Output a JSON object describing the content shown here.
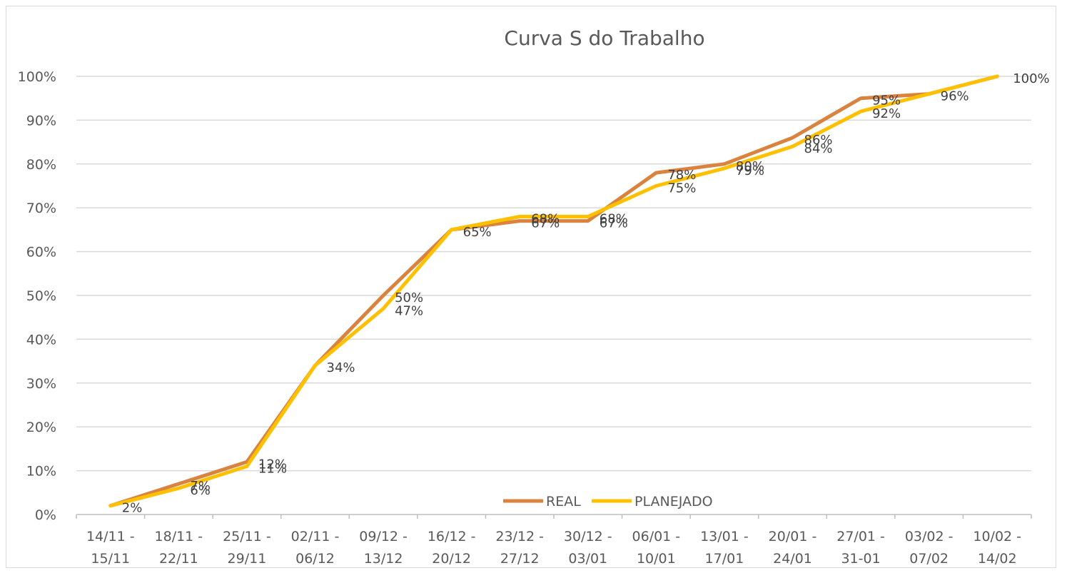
{
  "chart_data": {
    "type": "line",
    "title": "Curva S do Trabalho",
    "xlabel": "",
    "ylabel": "",
    "categories": [
      [
        "14/11 -",
        "15/11"
      ],
      [
        "18/11 -",
        "22/11"
      ],
      [
        "25/11 -",
        "29/11"
      ],
      [
        "02/11 -",
        "06/12"
      ],
      [
        "09/12 -",
        "13/12"
      ],
      [
        "16/12 -",
        "20/12"
      ],
      [
        "23/12 -",
        "27/12"
      ],
      [
        "30/12 -",
        "03/01"
      ],
      [
        "06/01 -",
        "10/01"
      ],
      [
        "13/01 -",
        "17/01"
      ],
      [
        "20/01 -",
        "24/01"
      ],
      [
        "27/01 -",
        "31-01"
      ],
      [
        "03/02 -",
        "07/02"
      ],
      [
        "10/02 -",
        "14/02"
      ]
    ],
    "ylim": [
      0,
      100
    ],
    "yticks": [
      0,
      10,
      20,
      30,
      40,
      50,
      60,
      70,
      80,
      90,
      100
    ],
    "ytick_labels": [
      "0%",
      "10%",
      "20%",
      "30%",
      "40%",
      "50%",
      "60%",
      "70%",
      "80%",
      "90%",
      "100%"
    ],
    "grid": true,
    "legend_position": "bottom-center",
    "series": [
      {
        "name": "REAL",
        "color": "#d9833f",
        "values": [
          2,
          7,
          12,
          34,
          50,
          65,
          67,
          67,
          78,
          80,
          86,
          95,
          96,
          100
        ],
        "labels": [
          "2%",
          "7%",
          "12%",
          "34%",
          "50%",
          "65%",
          "67%",
          "67%",
          "78%",
          "80%",
          "86%",
          "95%",
          "96%",
          "100%"
        ]
      },
      {
        "name": "PLANEJADO",
        "color": "#ffc000",
        "values": [
          2,
          6,
          11,
          34,
          47,
          65,
          68,
          68,
          75,
          79,
          84,
          92,
          96,
          100
        ],
        "labels": [
          "",
          "6%",
          "11%",
          "",
          "47%",
          "",
          "68%",
          "68%",
          "75%",
          "79%",
          "84%",
          "92%",
          "",
          ""
        ]
      }
    ]
  }
}
